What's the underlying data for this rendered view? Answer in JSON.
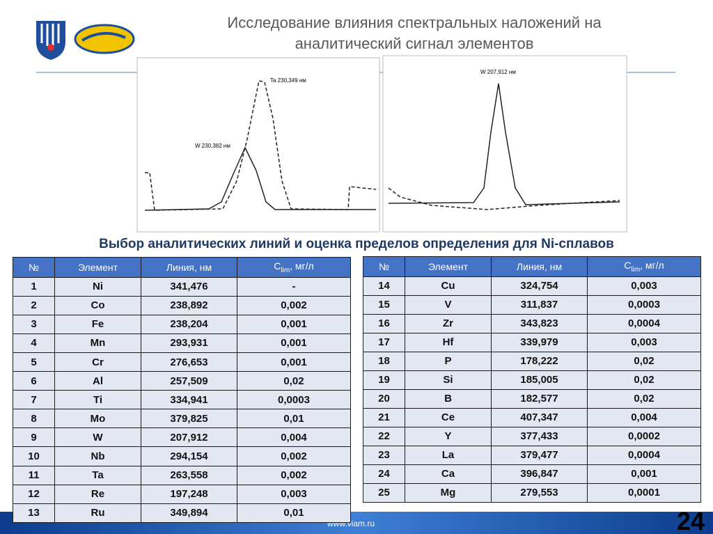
{
  "header": {
    "title_line1": "Исследование влияния спектральных наложений на",
    "title_line2": "аналитический сигнал элементов"
  },
  "plots": [
    {
      "labels": [
        "Ta 230,349 нм",
        "W 230,382 нм"
      ]
    },
    {
      "labels": [
        "W 207,912 нм"
      ]
    }
  ],
  "subtitle": "Выбор аналитических линий и оценка пределов определения для Ni-сплавов",
  "table_header": {
    "cells": [
      "№",
      "Элемент",
      "Линия, нм",
      "C"
    ],
    "sub": "lim",
    "unit": ", мг/л"
  },
  "tables": [
    {
      "rows": [
        [
          "1",
          "Ni",
          "341,476",
          "-"
        ],
        [
          "2",
          "Co",
          "238,892",
          "0,002"
        ],
        [
          "3",
          "Fe",
          "238,204",
          "0,001"
        ],
        [
          "4",
          "Mn",
          "293,931",
          "0,001"
        ],
        [
          "5",
          "Cr",
          "276,653",
          "0,001"
        ],
        [
          "6",
          "Al",
          "257,509",
          "0,02"
        ],
        [
          "7",
          "Ti",
          "334,941",
          "0,0003"
        ],
        [
          "8",
          "Mo",
          "379,825",
          "0,01"
        ],
        [
          "9",
          "W",
          "207,912",
          "0,004"
        ],
        [
          "10",
          "Nb",
          "294,154",
          "0,002"
        ],
        [
          "11",
          "Ta",
          "263,558",
          "0,002"
        ],
        [
          "12",
          "Re",
          "197,248",
          "0,003"
        ],
        [
          "13",
          "Ru",
          "349,894",
          "0,01"
        ]
      ]
    },
    {
      "rows": [
        [
          "14",
          "Cu",
          "324,754",
          "0,003"
        ],
        [
          "15",
          "V",
          "311,837",
          "0,0003"
        ],
        [
          "16",
          "Zr",
          "343,823",
          "0,0004"
        ],
        [
          "17",
          "Hf",
          "339,979",
          "0,003"
        ],
        [
          "18",
          "P",
          "178,222",
          "0,02"
        ],
        [
          "19",
          "Si",
          "185,005",
          "0,02"
        ],
        [
          "20",
          "B",
          "182,577",
          "0,02"
        ],
        [
          "21",
          "Ce",
          "407,347",
          "0,004"
        ],
        [
          "22",
          "Y",
          "377,433",
          "0,0002"
        ],
        [
          "23",
          "La",
          "379,477",
          "0,0004"
        ],
        [
          "24",
          "Ca",
          "396,847",
          "0,001"
        ],
        [
          "25",
          "Mg",
          "279,553",
          "0,0001"
        ]
      ]
    }
  ],
  "footer": {
    "url": "www.viam.ru",
    "page_number": "24"
  }
}
